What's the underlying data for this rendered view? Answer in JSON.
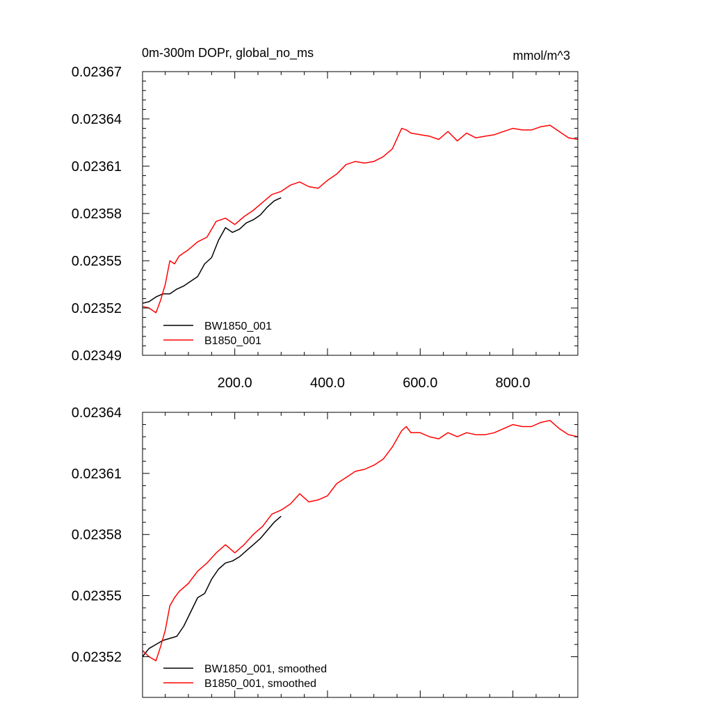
{
  "chart_data": [
    {
      "type": "line",
      "title": "0m-300m DOPr, global_no_ms",
      "units": "mmol/m^3",
      "xlim": [
        1,
        940
      ],
      "ylim": [
        0.02349,
        0.02367
      ],
      "y_ticks": [
        "0.02349",
        "0.02352",
        "0.02355",
        "0.02358",
        "0.02361",
        "0.02364",
        "0.02367"
      ],
      "x_ticks": [
        "200.0",
        "400.0",
        "600.0",
        "800.0"
      ],
      "x_tick_values": [
        200,
        400,
        600,
        800
      ],
      "legend": "bottom-left",
      "series": [
        {
          "name": "BW1850_001",
          "color": "#000000",
          "x": [
            1,
            15,
            30,
            45,
            60,
            75,
            90,
            105,
            120,
            135,
            150,
            165,
            180,
            195,
            210,
            225,
            240,
            255,
            270,
            285,
            300
          ],
          "y": [
            0.023523,
            0.023524,
            0.023527,
            0.023529,
            0.023529,
            0.023532,
            0.023534,
            0.023537,
            0.02354,
            0.023548,
            0.023552,
            0.023563,
            0.023571,
            0.023568,
            0.02357,
            0.023574,
            0.023576,
            0.023579,
            0.023584,
            0.023588,
            0.02359
          ]
        },
        {
          "name": "B1850_001",
          "color": "#ff0000",
          "x": [
            1,
            15,
            30,
            40,
            50,
            60,
            70,
            80,
            100,
            120,
            140,
            160,
            180,
            200,
            220,
            240,
            260,
            280,
            300,
            320,
            340,
            360,
            380,
            400,
            420,
            440,
            460,
            480,
            500,
            520,
            540,
            560,
            570,
            580,
            600,
            620,
            640,
            660,
            680,
            700,
            720,
            740,
            760,
            780,
            800,
            820,
            840,
            860,
            880,
            900,
            920,
            940
          ],
          "y": [
            0.023521,
            0.02352,
            0.023517,
            0.023525,
            0.023535,
            0.02355,
            0.023548,
            0.023553,
            0.023557,
            0.023562,
            0.023565,
            0.023575,
            0.023577,
            0.023573,
            0.023578,
            0.023582,
            0.023587,
            0.023592,
            0.023594,
            0.023598,
            0.0236,
            0.023597,
            0.023596,
            0.023601,
            0.023605,
            0.023611,
            0.023613,
            0.023612,
            0.023613,
            0.023616,
            0.023621,
            0.023634,
            0.023633,
            0.023631,
            0.02363,
            0.023629,
            0.023627,
            0.023632,
            0.023626,
            0.023631,
            0.023628,
            0.023629,
            0.02363,
            0.023632,
            0.023634,
            0.023633,
            0.023633,
            0.023635,
            0.023636,
            0.023632,
            0.023628,
            0.023627
          ]
        }
      ]
    },
    {
      "type": "line",
      "xlim": [
        1,
        940
      ],
      "ylim": [
        0.0235,
        0.02364
      ],
      "y_ticks": [
        "0.02352",
        "0.02355",
        "0.02358",
        "0.02361",
        "0.02364"
      ],
      "legend": "bottom-left",
      "series": [
        {
          "name": "BW1850_001, smoothed",
          "color": "#000000",
          "x": [
            1,
            15,
            30,
            45,
            60,
            75,
            90,
            105,
            120,
            135,
            150,
            165,
            180,
            195,
            210,
            225,
            240,
            255,
            270,
            285,
            300
          ],
          "y": [
            0.02352,
            0.023524,
            0.023526,
            0.023528,
            0.023529,
            0.02353,
            0.023535,
            0.023542,
            0.023549,
            0.023551,
            0.023558,
            0.023563,
            0.023566,
            0.023567,
            0.023569,
            0.023572,
            0.023575,
            0.023578,
            0.023582,
            0.023586,
            0.023589
          ]
        },
        {
          "name": "B1850_001, smoothed",
          "color": "#ff0000",
          "x": [
            1,
            15,
            30,
            40,
            50,
            60,
            70,
            80,
            100,
            120,
            140,
            160,
            180,
            200,
            220,
            240,
            260,
            280,
            300,
            320,
            340,
            360,
            380,
            400,
            420,
            440,
            460,
            480,
            500,
            520,
            540,
            560,
            570,
            580,
            600,
            620,
            640,
            660,
            680,
            700,
            720,
            740,
            760,
            780,
            800,
            820,
            840,
            860,
            880,
            900,
            920,
            940
          ],
          "y": [
            0.023523,
            0.02352,
            0.023518,
            0.023525,
            0.023533,
            0.023545,
            0.023549,
            0.023552,
            0.023556,
            0.023562,
            0.023566,
            0.023571,
            0.023575,
            0.023571,
            0.023575,
            0.02358,
            0.023584,
            0.02359,
            0.023592,
            0.023595,
            0.0236,
            0.023596,
            0.023597,
            0.023599,
            0.023605,
            0.023608,
            0.023611,
            0.023612,
            0.023614,
            0.023617,
            0.023623,
            0.023631,
            0.023633,
            0.02363,
            0.02363,
            0.023628,
            0.023627,
            0.02363,
            0.023628,
            0.02363,
            0.023629,
            0.023629,
            0.02363,
            0.023632,
            0.023634,
            0.023633,
            0.023633,
            0.023635,
            0.023636,
            0.023632,
            0.023629,
            0.023628
          ]
        }
      ]
    }
  ]
}
